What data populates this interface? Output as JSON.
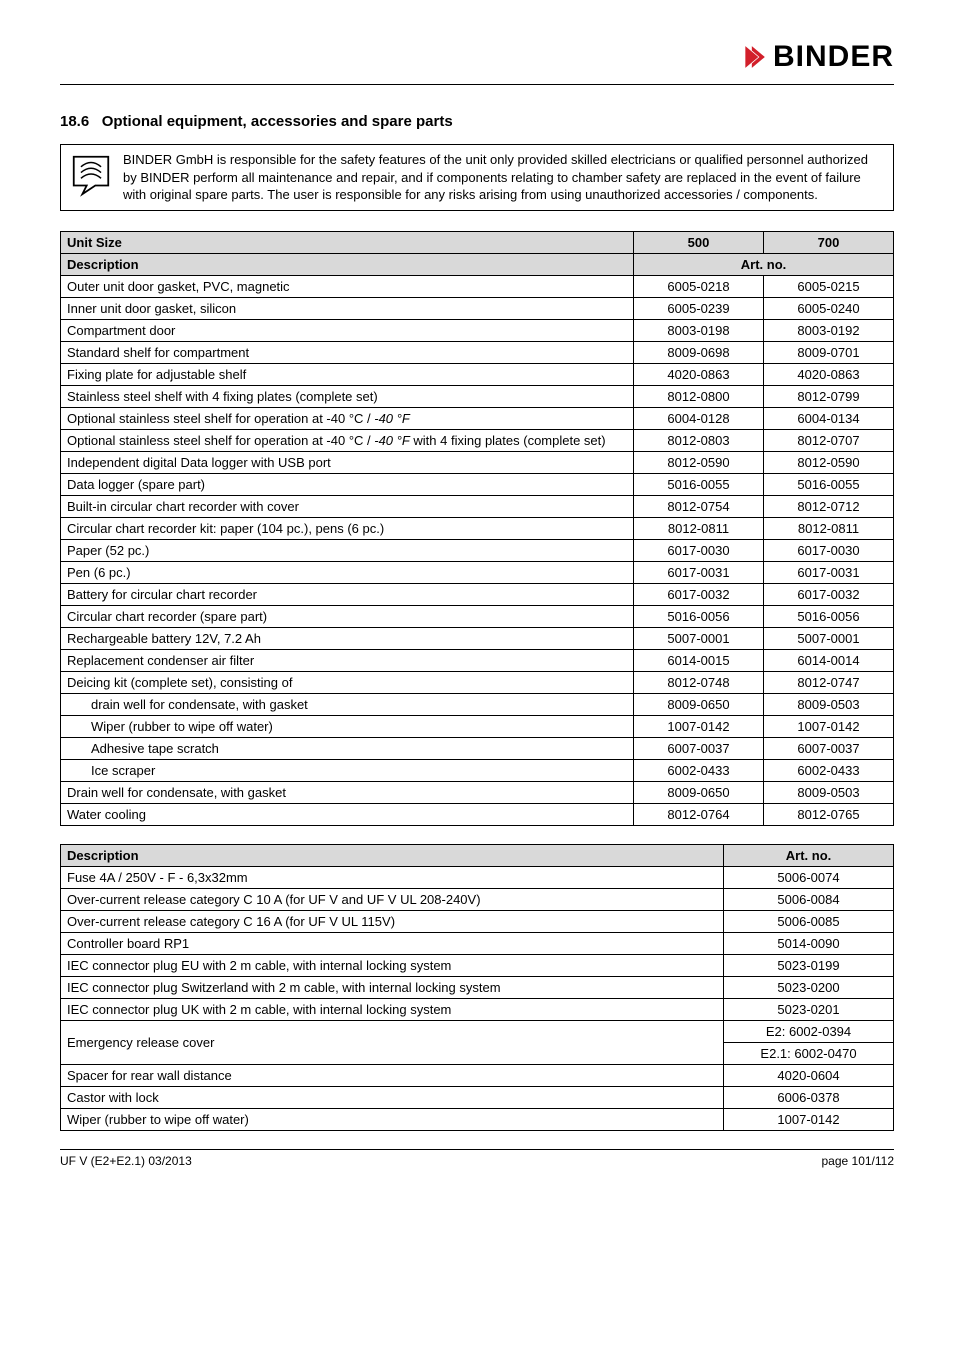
{
  "brand": "BINDER",
  "brand_color": "#d21f2a",
  "section": {
    "number": "18.6",
    "title": "Optional equipment, accessories and spare parts"
  },
  "notice": "BINDER GmbH is responsible for the safety features of the unit only provided skilled electricians or qualified personnel authorized by BINDER perform all maintenance and repair, and if components relating to chamber safety are replaced in the event of failure with original spare parts. The user is responsible for any risks arising from using unauthorized accessories / components.",
  "table1": {
    "header": {
      "unit_size": "Unit Size",
      "c500": "500",
      "c700": "700",
      "description": "Description",
      "art_no": "Art. no."
    },
    "rows": [
      {
        "desc": "Outer unit door gasket, PVC, magnetic",
        "c500": "6005-0218",
        "c700": "6005-0215"
      },
      {
        "desc": "Inner unit door gasket, silicon",
        "c500": "6005-0239",
        "c700": "6005-0240"
      },
      {
        "desc": "Compartment door",
        "c500": "8003-0198",
        "c700": "8003-0192"
      },
      {
        "desc": "Standard shelf for compartment",
        "c500": "8009-0698",
        "c700": "8009-0701"
      },
      {
        "desc": "Fixing plate for adjustable shelf",
        "c500": "4020-0863",
        "c700": "4020-0863"
      },
      {
        "desc": "Stainless steel shelf with 4 fixing plates (complete set)",
        "c500": "8012-0800",
        "c700": "8012-0799"
      },
      {
        "desc": "Optional stainless steel shelf for operation at -40 °C / -40 °F",
        "italic_tail": true,
        "c500": "6004-0128",
        "c700": "6004-0134"
      },
      {
        "desc": "Optional stainless steel shelf for operation at -40 °C / -40 °F with 4 fixing plates (complete set)",
        "italic_tail": true,
        "c500": "8012-0803",
        "c700": "8012-0707"
      },
      {
        "desc": "Independent digital Data logger with USB port",
        "c500": "8012-0590",
        "c700": "8012-0590"
      },
      {
        "desc": "Data logger (spare part)",
        "c500": "5016-0055",
        "c700": "5016-0055"
      },
      {
        "desc": "Built-in circular chart recorder with cover",
        "c500": "8012-0754",
        "c700": "8012-0712"
      },
      {
        "desc": "Circular chart recorder kit: paper (104 pc.), pens (6 pc.)",
        "c500": "8012-0811",
        "c700": "8012-0811"
      },
      {
        "desc": "Paper (52 pc.)",
        "c500": "6017-0030",
        "c700": "6017-0030"
      },
      {
        "desc": "Pen (6 pc.)",
        "c500": "6017-0031",
        "c700": "6017-0031"
      },
      {
        "desc": "Battery for circular chart recorder",
        "c500": "6017-0032",
        "c700": "6017-0032"
      },
      {
        "desc": "Circular chart recorder (spare part)",
        "c500": "5016-0056",
        "c700": "5016-0056"
      },
      {
        "desc": "Rechargeable battery 12V, 7.2 Ah",
        "c500": "5007-0001",
        "c700": "5007-0001"
      },
      {
        "desc": "Replacement condenser air filter",
        "c500": "6014-0015",
        "c700": "6014-0014"
      },
      {
        "desc": "Deicing kit (complete set), consisting of",
        "c500": "8012-0748",
        "c700": "8012-0747"
      },
      {
        "desc": "drain well for condensate, with gasket",
        "indent": true,
        "c500": "8009-0650",
        "c700": "8009-0503"
      },
      {
        "desc": "Wiper (rubber to wipe off water)",
        "indent": true,
        "c500": "1007-0142",
        "c700": "1007-0142"
      },
      {
        "desc": "Adhesive tape scratch",
        "indent": true,
        "c500": "6007-0037",
        "c700": "6007-0037"
      },
      {
        "desc": "Ice scraper",
        "indent": true,
        "c500": "6002-0433",
        "c700": "6002-0433"
      },
      {
        "desc": "Drain well for condensate, with gasket",
        "c500": "8009-0650",
        "c700": "8009-0503"
      },
      {
        "desc": "Water cooling",
        "c500": "8012-0764",
        "c700": "8012-0765"
      }
    ]
  },
  "table2": {
    "header": {
      "description": "Description",
      "art_no": "Art. no."
    },
    "rows": [
      {
        "desc": "Fuse 4A / 250V - F - 6,3x32mm",
        "art": "5006-0074"
      },
      {
        "desc": "Over-current release category C 10 A (for UF V and UF V UL 208-240V)",
        "art": "5006-0084"
      },
      {
        "desc": "Over-current release category C 16 A (for UF V UL 115V)",
        "art": "5006-0085"
      },
      {
        "desc": "Controller board RP1",
        "art": "5014-0090"
      },
      {
        "desc": "IEC connector plug EU with 2 m cable, with internal locking system",
        "art": "5023-0199"
      },
      {
        "desc": "IEC connector plug Switzerland with 2 m cable, with internal locking system",
        "art": "5023-0200"
      },
      {
        "desc": "IEC connector plug UK with 2 m cable, with internal locking system",
        "art": "5023-0201"
      }
    ],
    "emergency": {
      "desc": "Emergency release cover",
      "a1": "E2: 6002-0394",
      "a2": "E2.1: 6002-0470"
    },
    "rows2": [
      {
        "desc": "Spacer for rear wall distance",
        "art": "4020-0604"
      },
      {
        "desc": "Castor with lock",
        "art": "6006-0378"
      },
      {
        "desc": "Wiper (rubber to wipe off water)",
        "art": "1007-0142"
      }
    ]
  },
  "footer": {
    "left": "UF V (E2+E2.1) 03/2013",
    "right": "page 101/112"
  }
}
